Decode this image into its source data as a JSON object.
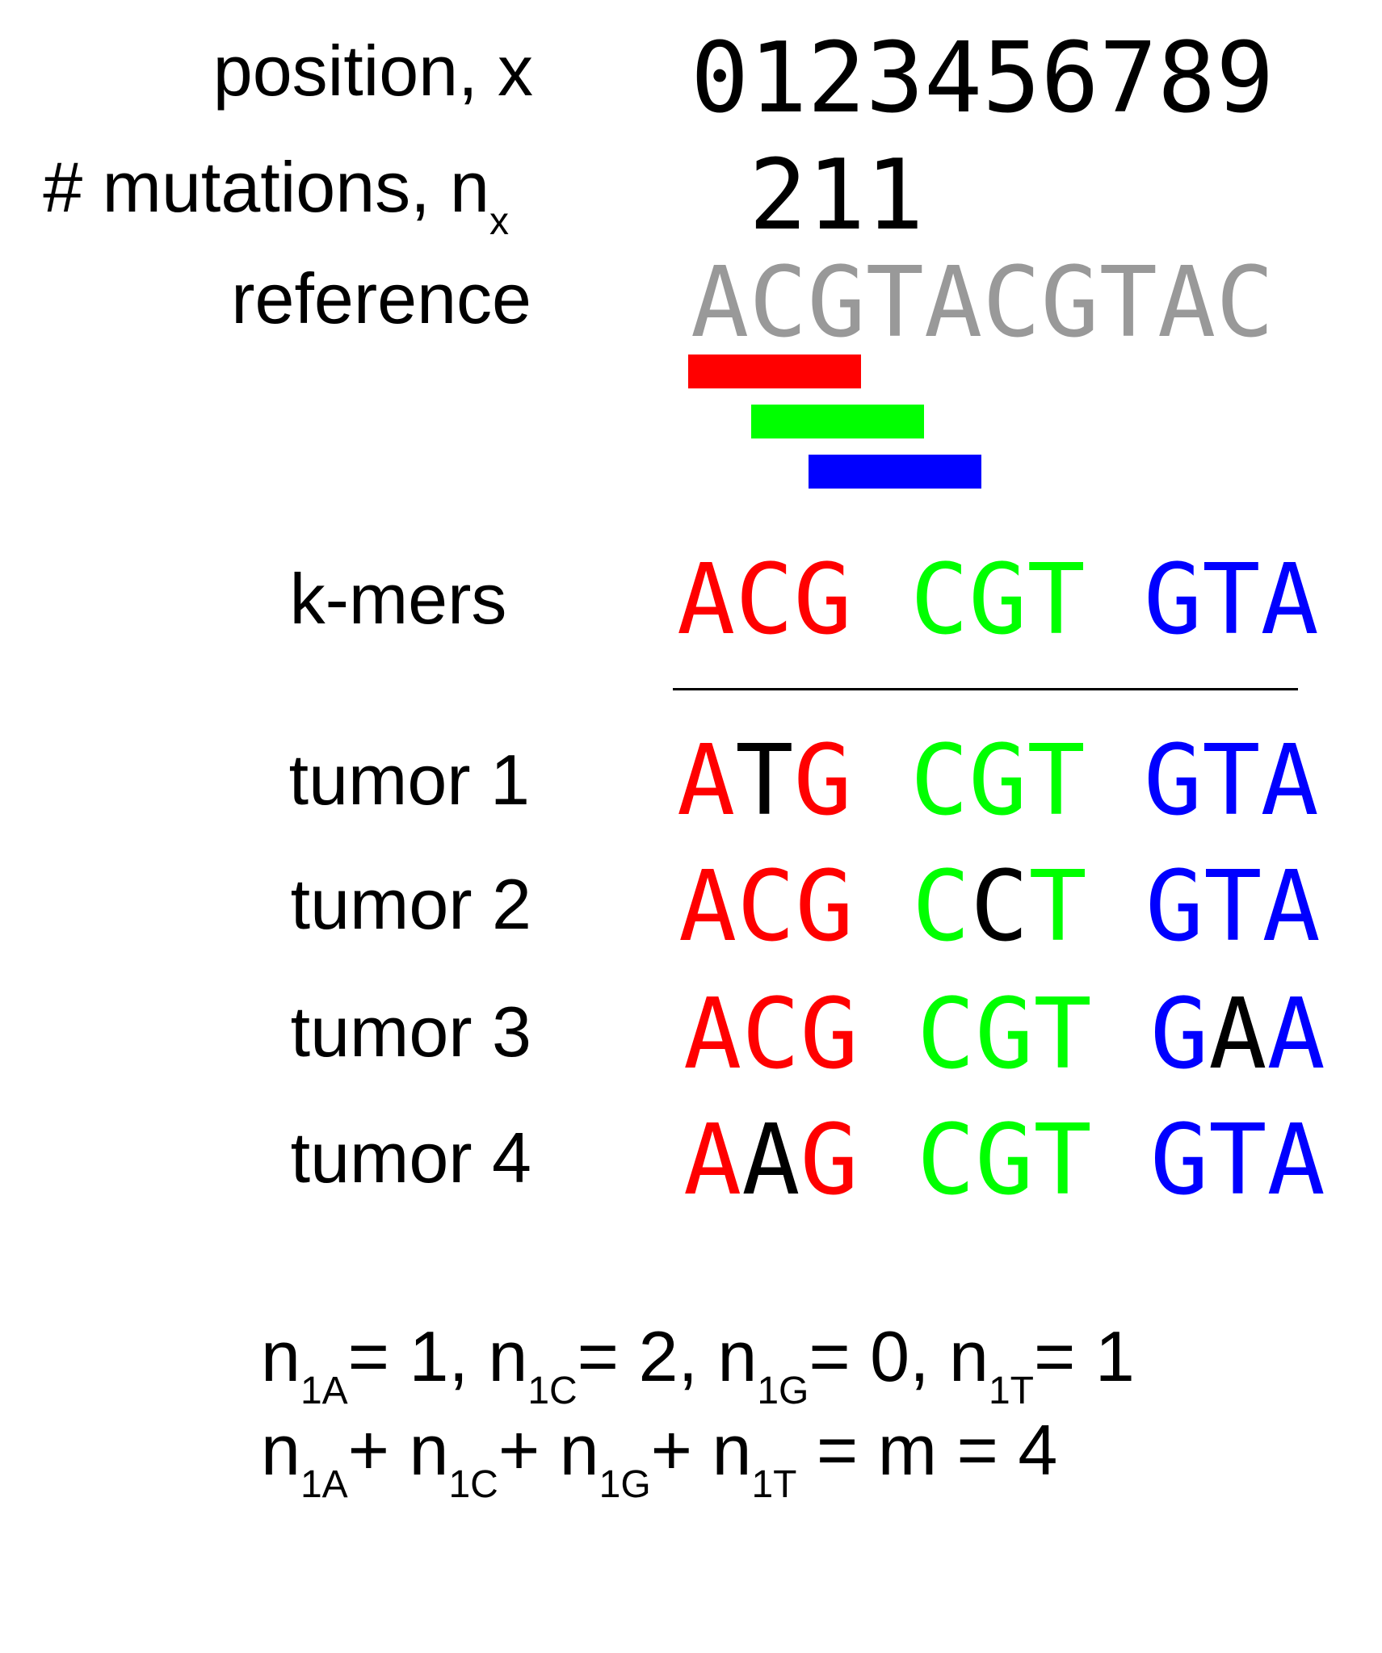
{
  "colors": {
    "red": "#ff0000",
    "green": "#00ff00",
    "blue": "#0000ff",
    "reference_gray": "#999999",
    "mutation_black": "#000000"
  },
  "labels": {
    "position": "position, x",
    "mutations_main": "# mutations, n",
    "mutations_sub": "x",
    "reference": "reference",
    "kmers": "k-mers"
  },
  "position_digits": "0123456789",
  "mutation_counts": "211",
  "reference_sequence": "ACGTACGTAC",
  "kmers": [
    {
      "seq": "ACG",
      "color": "red"
    },
    {
      "seq": "CGT",
      "color": "green"
    },
    {
      "seq": "GTA",
      "color": "blue"
    }
  ],
  "tumors": [
    {
      "label": "tumor 1",
      "kmers": [
        "ATG",
        "CGT",
        "GTA"
      ]
    },
    {
      "label": "tumor 2",
      "kmers": [
        "ACG",
        "CCT",
        "GTA"
      ]
    },
    {
      "label": "tumor 3",
      "kmers": [
        "ACG",
        "CGT",
        "GAA"
      ]
    },
    {
      "label": "tumor 4",
      "kmers": [
        "AAG",
        "CGT",
        "GTA"
      ]
    }
  ],
  "formula_line1": [
    {
      "base": "n",
      "sub": "1A",
      "after": "= 1, "
    },
    {
      "base": "n",
      "sub": "1C",
      "after": "= 2, "
    },
    {
      "base": "n",
      "sub": "1G",
      "after": "= 0, "
    },
    {
      "base": "n",
      "sub": "1T",
      "after": "= 1"
    }
  ],
  "formula_line2": [
    {
      "base": "n",
      "sub": "1A",
      "after": "+ "
    },
    {
      "base": "n",
      "sub": "1C",
      "after": "+ "
    },
    {
      "base": "n",
      "sub": "1G",
      "after": "+ "
    },
    {
      "base": "n",
      "sub": "1T",
      "after": " = m = 4"
    }
  ]
}
